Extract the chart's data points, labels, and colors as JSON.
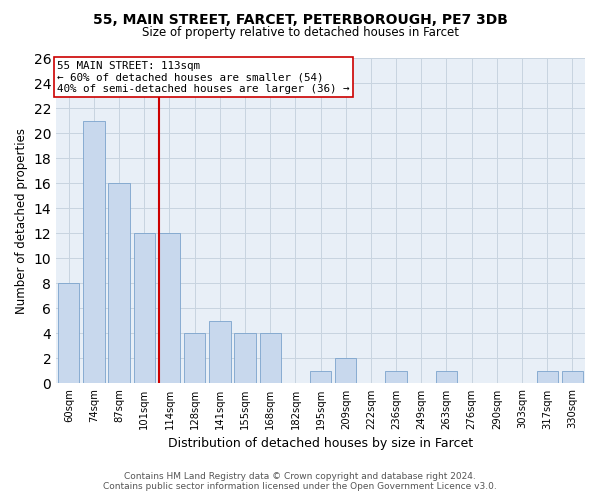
{
  "title_line1": "55, MAIN STREET, FARCET, PETERBOROUGH, PE7 3DB",
  "title_line2": "Size of property relative to detached houses in Farcet",
  "xlabel": "Distribution of detached houses by size in Farcet",
  "ylabel": "Number of detached properties",
  "bar_labels": [
    "60sqm",
    "74sqm",
    "87sqm",
    "101sqm",
    "114sqm",
    "128sqm",
    "141sqm",
    "155sqm",
    "168sqm",
    "182sqm",
    "195sqm",
    "209sqm",
    "222sqm",
    "236sqm",
    "249sqm",
    "263sqm",
    "276sqm",
    "290sqm",
    "303sqm",
    "317sqm",
    "330sqm"
  ],
  "bar_values": [
    8,
    21,
    16,
    12,
    12,
    4,
    5,
    4,
    4,
    0,
    1,
    2,
    0,
    1,
    0,
    1,
    0,
    0,
    0,
    1,
    1
  ],
  "bar_color": "#c8d8ed",
  "bar_edge_color": "#7ba3cc",
  "highlight_line_index": 4,
  "highlight_line_color": "#cc0000",
  "annotation_text_line1": "55 MAIN STREET: 113sqm",
  "annotation_text_line2": "← 60% of detached houses are smaller (54)",
  "annotation_text_line3": "40% of semi-detached houses are larger (36) →",
  "annotation_box_color": "white",
  "annotation_box_edge_color": "#cc0000",
  "ylim": [
    0,
    26
  ],
  "yticks": [
    0,
    2,
    4,
    6,
    8,
    10,
    12,
    14,
    16,
    18,
    20,
    22,
    24,
    26
  ],
  "footer_line1": "Contains HM Land Registry data © Crown copyright and database right 2024.",
  "footer_line2": "Contains public sector information licensed under the Open Government Licence v3.0.",
  "grid_color": "#c8d4e0",
  "background_color": "#e8eff7"
}
